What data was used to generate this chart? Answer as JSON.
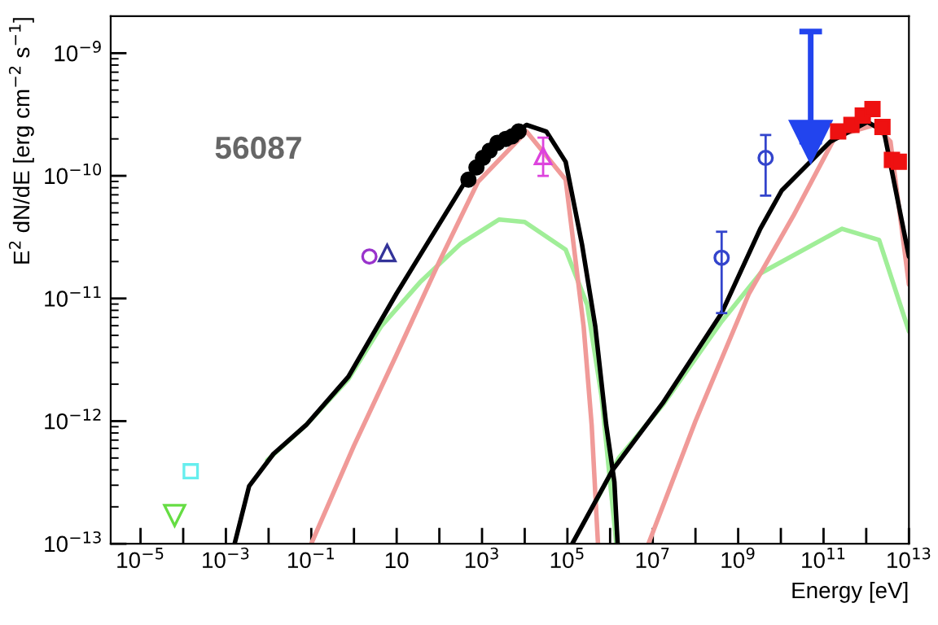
{
  "chart_data": {
    "type": "line",
    "xlabel": "Energy [eV]",
    "ylabel": "E$^{2}$ dN/dE [erg cm$^{−2}$ s$^{−1}$]",
    "log": "xy",
    "grid": false,
    "legend": false,
    "xlim": [
      2e-06,
      10000000000000.0
    ],
    "ylim": [
      1e-13,
      2e-09
    ],
    "xticks": [
      {
        "value": 1e-05,
        "label": "10$^{−5}$"
      },
      {
        "value": 0.0001,
        "label": null
      },
      {
        "value": 0.001,
        "label": "10$^{−3}$"
      },
      {
        "value": 0.01,
        "label": null
      },
      {
        "value": 0.1,
        "label": "10$^{−1}$"
      },
      {
        "value": 1,
        "label": null
      },
      {
        "value": 10,
        "label": "10"
      },
      {
        "value": 100,
        "label": null
      },
      {
        "value": 1000.0,
        "label": "10$^{3}$"
      },
      {
        "value": 10000.0,
        "label": null
      },
      {
        "value": 100000.0,
        "label": "10$^{5}$"
      },
      {
        "value": 1000000.0,
        "label": null
      },
      {
        "value": 10000000.0,
        "label": "10$^{7}$"
      },
      {
        "value": 100000000.0,
        "label": null
      },
      {
        "value": 1000000000.0,
        "label": "10$^{9}$"
      },
      {
        "value": 10000000000.0,
        "label": null
      },
      {
        "value": 100000000000.0,
        "label": "10$^{11}$"
      },
      {
        "value": 1000000000000.0,
        "label": null
      },
      {
        "value": 10000000000000.0,
        "label": "10$^{13}$"
      }
    ],
    "yticks": [
      {
        "value": 1e-13,
        "label": "10$^{−13}$"
      },
      {
        "value": 1e-12,
        "label": "10$^{−12}$"
      },
      {
        "value": 1e-11,
        "label": "10$^{−11}$"
      },
      {
        "value": 1e-10,
        "label": "10$^{−10}$"
      },
      {
        "value": 1e-09,
        "label": "10$^{−9}$"
      }
    ],
    "annotations": [
      "56087"
    ],
    "series": [
      {
        "color": "#a0ee98",
        "x": [
          0.0093,
          0.076,
          0.74,
          4.3,
          35,
          320,
          2500,
          10000.0,
          91000.0,
          290000.0,
          630000.0,
          1400000.0
        ],
        "values": [
          4.8e-13,
          9.3e-13,
          2.2e-12,
          5.9e-12,
          1.35e-11,
          2.8e-11,
          4.4e-11,
          4.2e-11,
          2.5e-11,
          8.9e-12,
          1.6e-12,
          1e-13
        ]
      },
      {
        "color": "#a0ee98",
        "x": [
          400000.0,
          1600000.0,
          17000000.0,
          410000000.0,
          3300000000.0,
          270000000000.0,
          2000000000000.0,
          10000000000000.0
        ],
        "values": [
          2e-13,
          5e-13,
          1.35e-12,
          6.5e-12,
          1.6e-11,
          3.7e-11,
          3e-11,
          5.4e-12
        ]
      },
      {
        "color": "#f09a98",
        "x": [
          0.1,
          1,
          10,
          100,
          800,
          11000.0,
          91000.0,
          240000.0,
          370000.0,
          520000.0
        ],
        "values": [
          1e-13,
          6.3e-13,
          3.5e-12,
          2e-11,
          8.9e-11,
          2.3e-10,
          9.3e-11,
          5.9e-12,
          9.3e-13,
          1e-13
        ]
      },
      {
        "color": "#f09a98",
        "x": [
          7900000.0,
          100000000.0,
          1800000000.0,
          19500000000.0,
          190000000000.0,
          1550000000000.0,
          3700000000000.0,
          10000000000000.0
        ],
        "values": [
          1e-13,
          1e-12,
          1.1e-11,
          4.7e-11,
          2.1e-10,
          2.6e-10,
          1.9e-10,
          1.3e-11
        ]
      },
      {
        "color": "#000000",
        "x": [
          0.0016,
          0.0035,
          0.013,
          0.076,
          0.74,
          10,
          400,
          2300,
          11000.0,
          32000.0,
          91000.0,
          220000.0,
          450000.0,
          810000.0,
          1260000.0,
          1500000.0
        ],
        "values": [
          1e-13,
          2.95e-13,
          5.4e-13,
          9.3e-13,
          2.3e-12,
          1.1e-11,
          8.9e-11,
          1.74e-10,
          2.6e-10,
          2.3e-10,
          1.3e-10,
          2.75e-11,
          5.9e-12,
          9.3e-13,
          3.2e-13,
          1e-13
        ]
      },
      {
        "color": "#000000",
        "x": [
          130000.0,
          1150000.0,
          17000000.0,
          410000000.0,
          3300000000.0,
          10500000000.0,
          145000000000.0,
          1070000000000.0,
          2600000000000.0,
          10000000000000.0
        ],
        "values": [
          1e-13,
          4e-13,
          1.4e-12,
          7.6e-12,
          3.7e-11,
          7.6e-11,
          1.9e-10,
          2.75e-10,
          2.3e-10,
          2.2e-11
        ]
      },
      {
        "type": "scatter",
        "color": "#000000",
        "marker": "circle",
        "x": [
          480,
          740,
          1050,
          1500,
          2300,
          3600,
          5100,
          7200
        ],
        "values": [
          9.3e-11,
          1.17e-10,
          1.4e-10,
          1.6e-10,
          1.86e-10,
          2e-10,
          2.1e-10,
          2.3e-10
        ]
      },
      {
        "type": "scatter",
        "color": "#dd44dd",
        "marker": "triangle",
        "x": [
          27000.0
        ],
        "values": [
          1.45e-10
        ],
        "errors": [
          [
            1e-10,
            2.05e-10
          ]
        ]
      },
      {
        "type": "scatter",
        "color": "#9933cc",
        "marker": "circle",
        "x": [
          2.3
        ],
        "values": [
          2.2e-11
        ]
      },
      {
        "type": "scatter",
        "color": "#333399",
        "marker": "triangle",
        "x": [
          6.0
        ],
        "values": [
          2.35e-11
        ]
      },
      {
        "type": "scatter",
        "color": "#66eeee",
        "marker": "square",
        "x": [
          0.00015
        ],
        "values": [
          3.9e-13
        ]
      },
      {
        "type": "scatter",
        "color": "#66dd44",
        "marker": "triangle_down",
        "x": [
          6.3e-05
        ],
        "values": [
          1.7e-13
        ]
      },
      {
        "type": "scatter",
        "color": "#3344cc",
        "marker": "circle",
        "x": [
          410000000.0,
          4400000000.0
        ],
        "values": [
          2.15e-11,
          1.4e-10
        ],
        "errors": [
          [
            7.6e-12,
            3.5e-11
          ],
          [
            6.9e-11,
            2.15e-10
          ]
        ]
      },
      {
        "type": "scatter",
        "color": "#2244ee",
        "marker": "triangle_down",
        "x": [
          50000000000.0
        ],
        "values": [
          1.9e-10
        ],
        "errors": [
          [
            1.9e-10,
            1.5e-09
          ]
        ]
      },
      {
        "type": "scatter",
        "color": "#ee1111",
        "marker": "square",
        "x": [
          220000000000.0,
          450000000000.0,
          830000000000.0,
          1400000000000.0,
          2400000000000.0,
          4000000000000.0,
          5800000000000.0
        ],
        "values": [
          2.3e-10,
          2.6e-10,
          3.1e-10,
          3.5e-10,
          2.5e-10,
          1.35e-10,
          1.3e-10
        ]
      }
    ]
  }
}
